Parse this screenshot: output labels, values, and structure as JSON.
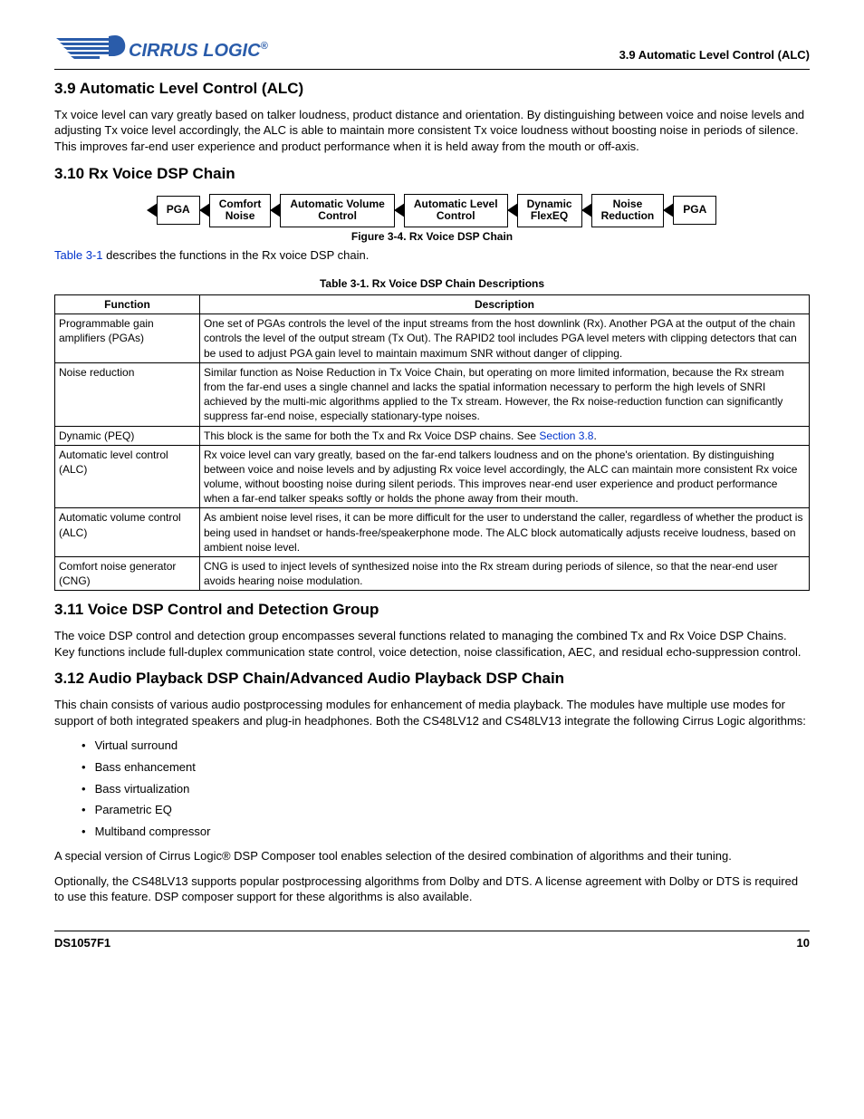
{
  "header": {
    "brand": "CIRRUS LOGIC",
    "reg": "®",
    "section_label": "3.9 Automatic Level Control (ALC)"
  },
  "s39": {
    "title": "3.9  Automatic Level Control (ALC)",
    "body": "Tx voice level can vary greatly based on talker loudness, product distance and orientation. By distinguishing between voice and noise levels and adjusting Tx voice level accordingly, the ALC is able to maintain more consistent Tx voice loudness without boosting noise in periods of silence. This improves far-end user experience and product performance when it is held away from the mouth or off-axis."
  },
  "s310": {
    "title": "3.10 Rx Voice DSP Chain",
    "blocks": [
      "PGA",
      "Comfort\nNoise",
      "Automatic Volume\nControl",
      "Automatic Level\nControl",
      "Dynamic\nFlexEQ",
      "Noise\nReduction",
      "PGA"
    ],
    "fig_caption": "Figure 3-4. Rx Voice DSP Chain",
    "intro_pre": "Table 3-1",
    "intro_post": " describes the functions in the Rx voice DSP chain.",
    "table_caption": "Table 3-1.  Rx Voice DSP Chain Descriptions",
    "th_fn": "Function",
    "th_desc": "Description",
    "rows": [
      {
        "fn": "Programmable gain amplifiers (PGAs)",
        "desc": "One set of PGAs controls the level of the input streams from the host downlink (Rx). Another PGA at the output of the chain controls the level of the output stream (Tx Out). The RAPID2 tool includes PGA level meters with clipping detectors that can be used to adjust PGA gain level to maintain maximum SNR without danger of clipping."
      },
      {
        "fn": "Noise reduction",
        "desc": "Similar function as Noise Reduction in Tx Voice Chain, but operating on more limited information, because the Rx stream from the far-end uses a single channel and lacks the spatial information necessary to perform the high levels of SNRI achieved by the multi-mic algorithms applied to the Tx stream. However, the Rx noise-reduction function can significantly suppress far-end noise, especially stationary-type noises."
      },
      {
        "fn": "Dynamic (PEQ)",
        "desc_pre": "This block is the same for both the Tx and Rx Voice DSP chains. See ",
        "link": "Section 3.8",
        "desc_post": "."
      },
      {
        "fn": "Automatic level control (ALC)",
        "desc": "Rx voice level can vary greatly, based on the far-end talkers loudness and on the phone's orientation. By distinguishing between voice and noise levels and by adjusting Rx voice level accordingly, the ALC can maintain more consistent Rx voice volume, without boosting noise during silent periods. This improves near-end user experience and product performance when a far-end talker speaks softly or holds the phone away from their mouth."
      },
      {
        "fn": "Automatic volume control (ALC)",
        "desc": "As ambient noise level rises, it can be more difficult for the user to understand the caller, regardless of whether the product is being used in handset or hands-free/speakerphone mode. The ALC block automatically adjusts receive loudness, based on ambient noise level."
      },
      {
        "fn": "Comfort noise generator (CNG)",
        "desc": "CNG is used to inject levels of synthesized noise into the Rx stream during periods of silence, so that the near-end user avoids hearing noise modulation."
      }
    ]
  },
  "s311": {
    "title": "3.11 Voice DSP Control and Detection Group",
    "body": "The voice DSP control and detection group encompasses several functions related to managing the combined Tx and Rx Voice DSP Chains. Key functions include full-duplex communication state control, voice detection, noise classification, AEC, and residual echo-suppression control."
  },
  "s312": {
    "title": "3.12 Audio Playback DSP Chain/Advanced Audio Playback DSP Chain",
    "p1": "This chain consists of various audio postprocessing modules for enhancement of media playback. The modules have multiple use modes for support of both integrated speakers and plug-in headphones. Both the CS48LV12 and CS48LV13 integrate the following Cirrus Logic algorithms:",
    "bullets": [
      "Virtual surround",
      "Bass enhancement",
      "Bass virtualization",
      "Parametric EQ",
      "Multiband compressor"
    ],
    "p2": "A special version of Cirrus Logic® DSP Composer tool enables selection of the desired combination of algorithms and their tuning.",
    "p3": "Optionally, the CS48LV13 supports popular postprocessing algorithms from Dolby and DTS. A license agreement with Dolby or DTS is required to use this feature. DSP composer support for these algorithms is also available."
  },
  "footer": {
    "doc": "DS1057F1",
    "page": "10"
  },
  "colors": {
    "link": "#0033cc",
    "brand": "#2a5caa"
  }
}
